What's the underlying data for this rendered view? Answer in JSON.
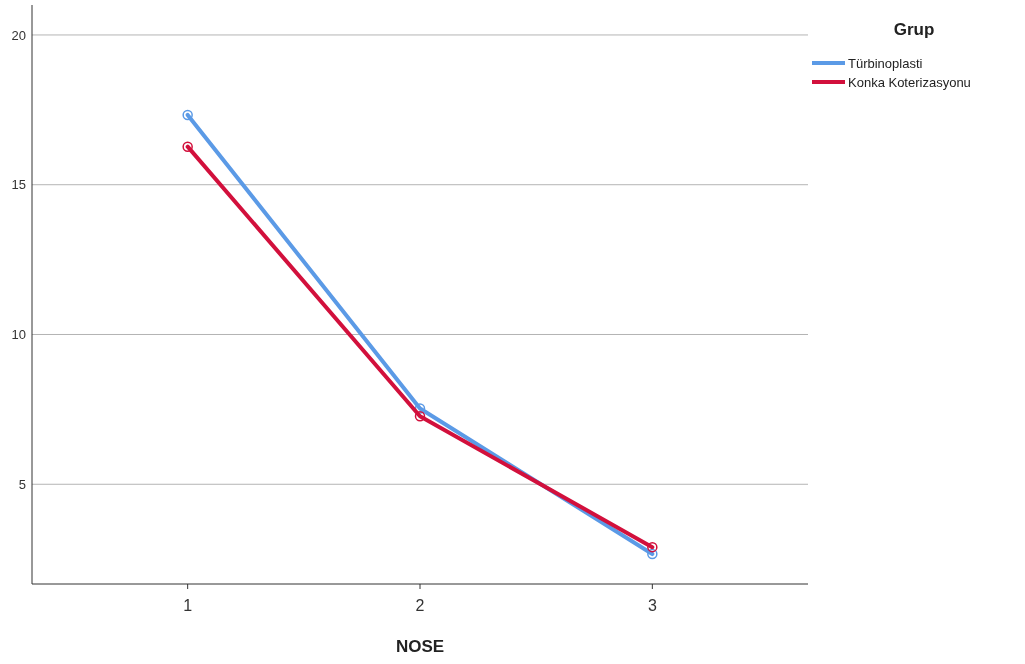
{
  "chart_data": {
    "type": "line",
    "xlabel": "NOSE",
    "legend_title": "Grup",
    "x": [
      1,
      2,
      3
    ],
    "series": [
      {
        "name": "Türbinoplasti",
        "color": "#5b9ae6",
        "values": [
          17.33,
          7.53,
          2.67
        ]
      },
      {
        "name": "Konka Koterizasyonu",
        "color": "#d2103c",
        "values": [
          16.27,
          7.27,
          2.9
        ]
      }
    ],
    "xlim": [
      0.33,
      3.67
    ],
    "xticks": [
      1,
      2,
      3
    ],
    "ylim": [
      1.67,
      21
    ],
    "yticks": [
      5,
      10,
      15,
      20
    ],
    "grid": "y",
    "legend": "top right",
    "marker": "circle",
    "line_style": "solid"
  }
}
